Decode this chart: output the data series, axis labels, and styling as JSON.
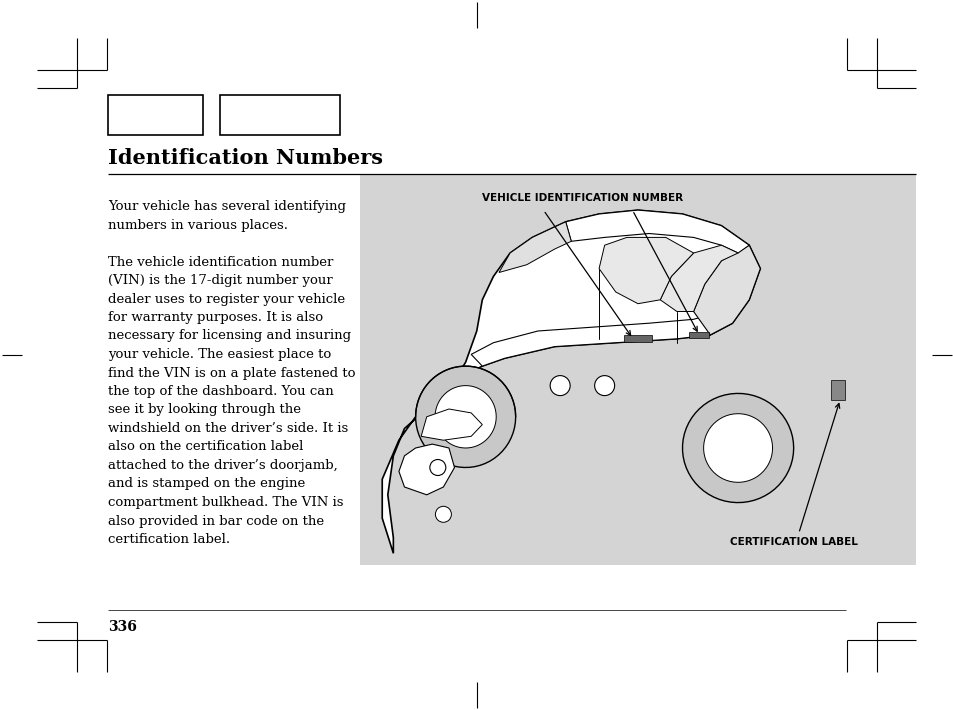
{
  "page_bg": "#ffffff",
  "title": "Identification Numbers",
  "title_fontsize": 15,
  "body_text_left": "Your vehicle has several identifying\nnumbers in various places.\n\nThe vehicle identification number\n(VIN) is the 17-digit number your\ndealer uses to register your vehicle\nfor warranty purposes. It is also\nnecessary for licensing and insuring\nyour vehicle. The easiest place to\nfind the VIN is on a plate fastened to\nthe top of the dashboard. You can\nsee it by looking through the\nwindshield on the driver’s side. It is\nalso on the certification label\nattached to the driver’s doorjamb,\nand is stamped on the engine\ncompartment bulkhead. The VIN is\nalso provided in bar code on the\ncertification label.",
  "body_fontsize": 9.5,
  "page_number": "336",
  "diagram_label_vin": "VEHICLE IDENTIFICATION NUMBER",
  "diagram_label_cert": "CERTIFICATION LABEL",
  "diagram_bg": "#d4d4d4"
}
